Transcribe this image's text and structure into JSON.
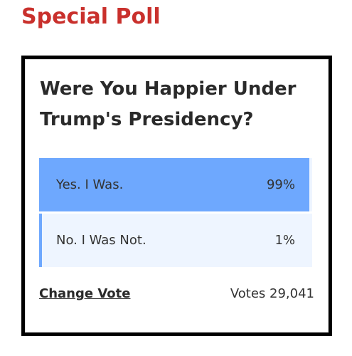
{
  "header": {
    "title": "Special Poll"
  },
  "poll": {
    "question": "Were You Happier Under Trump's Presidency?",
    "options": [
      {
        "label": "Yes. I Was.",
        "value": 99,
        "value_label": "99%"
      },
      {
        "label": "No. I Was Not.",
        "value": 1,
        "value_label": "1%"
      }
    ],
    "change_vote": "Change Vote",
    "votes": "Votes 29,041"
  }
}
